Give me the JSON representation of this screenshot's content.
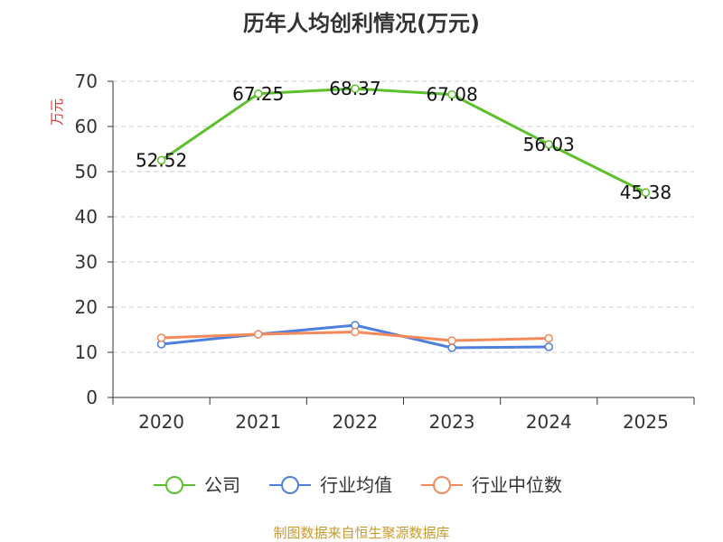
{
  "chart_data": {
    "type": "line",
    "title": "历年人均创利情况(万元)",
    "ylabel": "万元",
    "xlabel": "",
    "ylim": [
      0,
      70
    ],
    "yticks": [
      0,
      10,
      20,
      30,
      40,
      50,
      60,
      70
    ],
    "categories": [
      "2020",
      "2021",
      "2022",
      "2023",
      "2024",
      "2025"
    ],
    "grid": true,
    "legend_position": "bottom-center",
    "series": [
      {
        "name": "公司",
        "color": "#5cc02a",
        "values": [
          52.52,
          67.25,
          68.37,
          67.08,
          56.03,
          45.38
        ],
        "labels": [
          "52.52",
          "67.25",
          "68.37",
          "67.08",
          "56.03",
          "45.38"
        ]
      },
      {
        "name": "行业均值",
        "color": "#4f7fde",
        "values": [
          11.8,
          14.0,
          16.0,
          11.0,
          11.2,
          null
        ]
      },
      {
        "name": "行业中位数",
        "color": "#f48a5a",
        "values": [
          13.2,
          14.0,
          14.5,
          12.6,
          13.1,
          null
        ]
      }
    ]
  },
  "source": "制图数据来自恒生聚源数据库"
}
